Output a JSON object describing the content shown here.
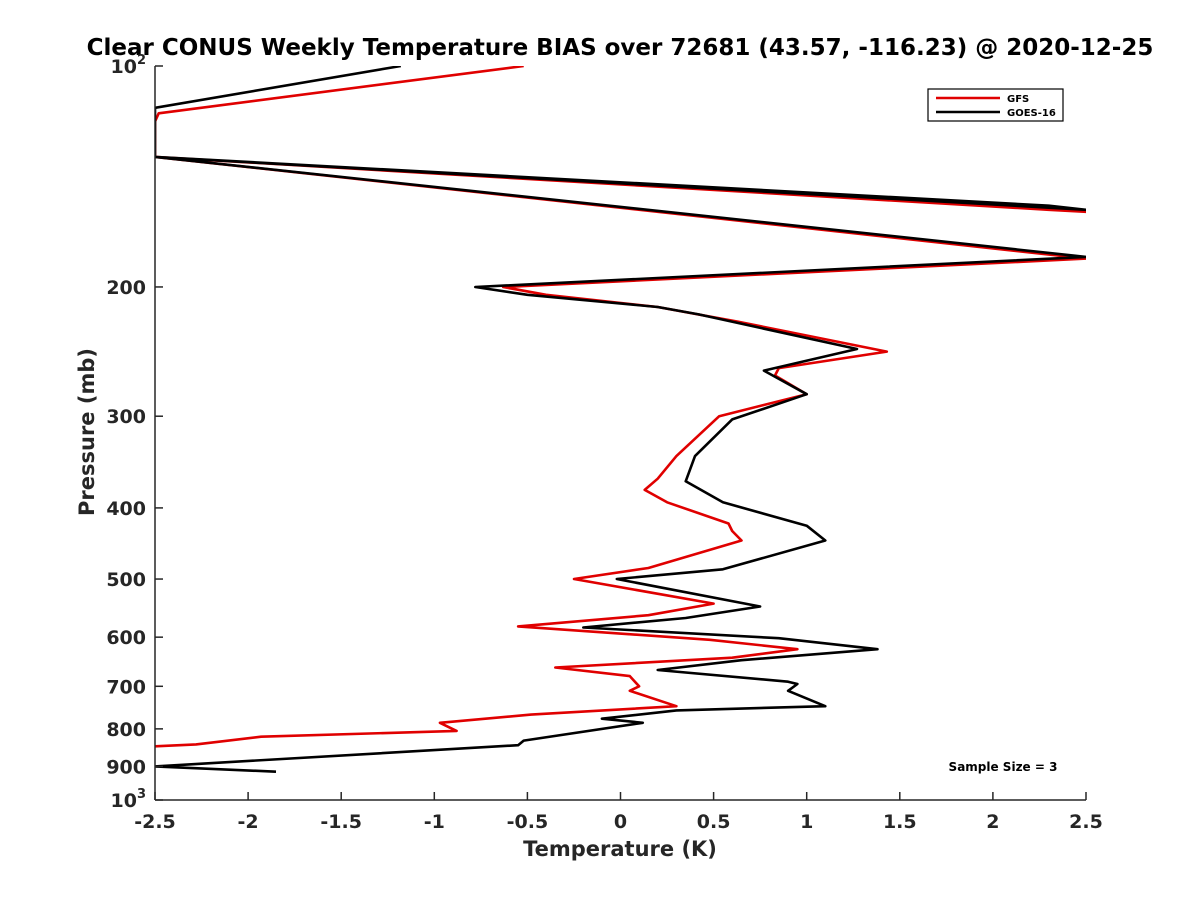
{
  "chart_data": {
    "type": "line",
    "title": "Clear CONUS Weekly Temperature BIAS over 72681 (43.57, -116.23) @ 2020-12-25",
    "xlabel": "Temperature (K)",
    "ylabel": "Pressure (mb)",
    "xlim": [
      -2.5,
      2.5
    ],
    "ylim": [
      100,
      1000
    ],
    "y_scale": "log",
    "y_reversed": true,
    "x_ticks": [
      -2.5,
      -2,
      -1.5,
      -1,
      -0.5,
      0,
      0.5,
      1,
      1.5,
      2,
      2.5
    ],
    "x_tick_labels": [
      "-2.5",
      "-2",
      "-1.5",
      "-1",
      "-0.5",
      "0",
      "0.5",
      "1",
      "1.5",
      "2",
      "2.5"
    ],
    "y_ticks": [
      100,
      200,
      300,
      400,
      500,
      600,
      700,
      800,
      900,
      1000
    ],
    "y_tick_labels": [
      {
        "base": "10",
        "exp": "2"
      },
      {
        "base": "200",
        "exp": ""
      },
      {
        "base": "300",
        "exp": ""
      },
      {
        "base": "400",
        "exp": ""
      },
      {
        "base": "500",
        "exp": ""
      },
      {
        "base": "600",
        "exp": ""
      },
      {
        "base": "700",
        "exp": ""
      },
      {
        "base": "800",
        "exp": ""
      },
      {
        "base": "900",
        "exp": ""
      },
      {
        "base": "10",
        "exp": "3"
      }
    ],
    "grid": false,
    "legend_position": "top-right",
    "annotation": "Sample Size = 3",
    "series": [
      {
        "name": "GFS",
        "color": "#e00000",
        "points": [
          [
            -0.52,
            100
          ],
          [
            -2.48,
            116
          ],
          [
            -2.5,
            119
          ],
          [
            -2.5,
            133
          ],
          [
            2.5,
            158
          ],
          [
            2.3,
            157
          ],
          [
            -2.5,
            133
          ],
          [
            2.5,
            183
          ],
          [
            -0.63,
            200
          ],
          [
            -0.4,
            205
          ],
          [
            0.2,
            213
          ],
          [
            0.63,
            223
          ],
          [
            1.43,
            245
          ],
          [
            0.85,
            258
          ],
          [
            0.83,
            264
          ],
          [
            1.0,
            280
          ],
          [
            0.53,
            300
          ],
          [
            0.3,
            340
          ],
          [
            0.2,
            365
          ],
          [
            0.13,
            378
          ],
          [
            0.25,
            393
          ],
          [
            0.58,
            420
          ],
          [
            0.6,
            430
          ],
          [
            0.65,
            443
          ],
          [
            0.15,
            483
          ],
          [
            -0.25,
            500
          ],
          [
            0.5,
            540
          ],
          [
            0.15,
            560
          ],
          [
            -0.55,
            580
          ],
          [
            0.48,
            605
          ],
          [
            0.95,
            623
          ],
          [
            0.6,
            640
          ],
          [
            -0.35,
            660
          ],
          [
            0.05,
            678
          ],
          [
            0.1,
            700
          ],
          [
            0.05,
            710
          ],
          [
            0.3,
            745
          ],
          [
            -0.48,
            765
          ],
          [
            -0.97,
            785
          ],
          [
            -0.88,
            805
          ],
          [
            -1.93,
            820
          ],
          [
            -2.28,
            840
          ],
          [
            -2.5,
            845
          ]
        ]
      },
      {
        "name": "GOES-16",
        "color": "#000000",
        "points": [
          [
            -1.18,
            100
          ],
          [
            -2.5,
            114
          ],
          [
            -2.5,
            133
          ],
          [
            2.5,
            157
          ],
          [
            2.3,
            155
          ],
          [
            -2.5,
            133
          ],
          [
            2.5,
            182
          ],
          [
            -0.78,
            200
          ],
          [
            -0.5,
            205
          ],
          [
            0.2,
            213
          ],
          [
            0.42,
            218
          ],
          [
            1.27,
            243
          ],
          [
            0.77,
            260
          ],
          [
            1.0,
            280
          ],
          [
            0.6,
            303
          ],
          [
            0.4,
            340
          ],
          [
            0.35,
            368
          ],
          [
            0.55,
            393
          ],
          [
            1.0,
            423
          ],
          [
            1.1,
            443
          ],
          [
            0.55,
            485
          ],
          [
            -0.02,
            500
          ],
          [
            0.75,
            545
          ],
          [
            0.35,
            565
          ],
          [
            -0.2,
            582
          ],
          [
            0.85,
            602
          ],
          [
            1.38,
            623
          ],
          [
            0.65,
            645
          ],
          [
            0.2,
            665
          ],
          [
            0.9,
            690
          ],
          [
            0.95,
            695
          ],
          [
            0.9,
            710
          ],
          [
            1.1,
            745
          ],
          [
            0.3,
            755
          ],
          [
            -0.1,
            775
          ],
          [
            0.12,
            785
          ],
          [
            -0.52,
            830
          ],
          [
            -0.55,
            842
          ],
          [
            -2.5,
            900
          ],
          [
            -1.85,
            915
          ]
        ]
      }
    ]
  }
}
